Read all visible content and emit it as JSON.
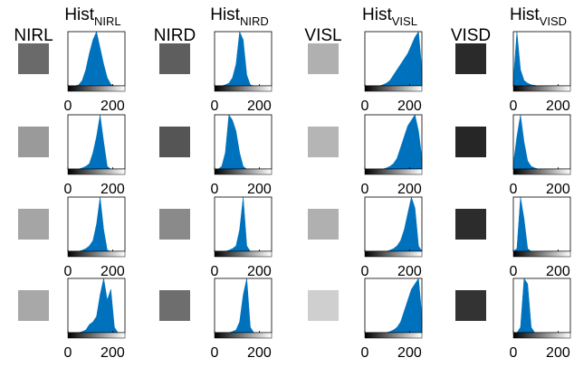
{
  "columns": [
    {
      "image_label": "NIRL",
      "hist_title": "Hist",
      "hist_subscript": "NIRL"
    },
    {
      "image_label": "NIRD",
      "hist_title": "Hist",
      "hist_subscript": "NIRD"
    },
    {
      "image_label": "VISL",
      "hist_title": "Hist",
      "hist_subscript": "VISL"
    },
    {
      "image_label": "VISD",
      "hist_title": "Hist",
      "hist_subscript": "VISD"
    }
  ],
  "chart_data": [
    {
      "type": "area",
      "x": [
        0,
        16,
        32,
        48,
        64,
        80,
        96,
        112,
        128,
        144,
        160,
        176,
        192,
        208,
        224,
        240,
        255
      ],
      "values": [
        0,
        0,
        0,
        0.02,
        0.1,
        0.3,
        0.6,
        0.85,
        1,
        0.7,
        0.4,
        0.15,
        0.03,
        0,
        0,
        0,
        0
      ],
      "xlim": [
        0,
        255
      ],
      "ylim": [
        0,
        1
      ],
      "xticks": [
        0,
        200
      ],
      "color": "#0072bd"
    },
    {
      "type": "area",
      "x": [
        0,
        16,
        32,
        48,
        64,
        80,
        96,
        112,
        128,
        144,
        160,
        176,
        192,
        208,
        224,
        240,
        255
      ],
      "values": [
        0,
        0,
        0,
        0.02,
        0.05,
        0.15,
        0.4,
        1,
        0.85,
        0.2,
        0.02,
        0,
        0,
        0,
        0,
        0,
        0
      ],
      "xlim": [
        0,
        255
      ],
      "ylim": [
        0,
        1
      ],
      "xticks": [
        0,
        200
      ],
      "color": "#0072bd"
    },
    {
      "type": "area",
      "x": [
        0,
        16,
        32,
        48,
        64,
        80,
        96,
        112,
        128,
        144,
        160,
        176,
        192,
        208,
        224,
        240,
        255
      ],
      "values": [
        0,
        0,
        0,
        0,
        0,
        0.02,
        0.05,
        0.1,
        0.2,
        0.3,
        0.4,
        0.5,
        0.6,
        0.75,
        0.9,
        1,
        0.3
      ],
      "xlim": [
        0,
        255
      ],
      "ylim": [
        0,
        1
      ],
      "xticks": [
        0,
        200
      ],
      "color": "#0072bd"
    },
    {
      "type": "area",
      "x": [
        0,
        16,
        32,
        48,
        64,
        80,
        96,
        112,
        128,
        144,
        160,
        176,
        192,
        208,
        224,
        240,
        255
      ],
      "values": [
        0.1,
        1,
        0.3,
        0.1,
        0.05,
        0.02,
        0.01,
        0,
        0,
        0,
        0,
        0,
        0,
        0,
        0,
        0,
        0
      ],
      "xlim": [
        0,
        255
      ],
      "ylim": [
        0,
        1
      ],
      "xticks": [
        0,
        200
      ],
      "color": "#0072bd"
    },
    {
      "type": "area",
      "x": [
        0,
        16,
        32,
        48,
        64,
        80,
        96,
        112,
        128,
        144,
        160,
        176,
        192,
        208,
        224,
        240,
        255
      ],
      "values": [
        0,
        0,
        0,
        0,
        0.02,
        0.05,
        0.1,
        0.3,
        0.6,
        1,
        0.5,
        0.05,
        0,
        0,
        0,
        0,
        0
      ],
      "xlim": [
        0,
        255
      ],
      "ylim": [
        0,
        1
      ],
      "xticks": [
        0,
        200
      ],
      "color": "#0072bd"
    },
    {
      "type": "area",
      "x": [
        0,
        16,
        32,
        48,
        64,
        80,
        96,
        112,
        128,
        144,
        160,
        176,
        192,
        208,
        224,
        240,
        255
      ],
      "values": [
        0,
        0,
        0.05,
        0.3,
        1,
        0.9,
        0.7,
        0.3,
        0.05,
        0,
        0,
        0,
        0,
        0,
        0,
        0,
        0
      ],
      "xlim": [
        0,
        255
      ],
      "ylim": [
        0,
        1
      ],
      "xticks": [
        0,
        200
      ],
      "color": "#0072bd"
    },
    {
      "type": "area",
      "x": [
        0,
        16,
        32,
        48,
        64,
        80,
        96,
        112,
        128,
        144,
        160,
        176,
        192,
        208,
        224,
        240,
        255
      ],
      "values": [
        0,
        0,
        0,
        0,
        0,
        0,
        0.02,
        0.05,
        0.1,
        0.2,
        0.4,
        0.6,
        0.8,
        0.9,
        1,
        0.7,
        0.2
      ],
      "xlim": [
        0,
        255
      ],
      "ylim": [
        0,
        1
      ],
      "xticks": [
        0,
        200
      ],
      "color": "#0072bd"
    },
    {
      "type": "area",
      "x": [
        0,
        16,
        32,
        48,
        64,
        80,
        96,
        112,
        128,
        144,
        160,
        176,
        192,
        208,
        224,
        240,
        255
      ],
      "values": [
        0.1,
        0.6,
        1,
        0.5,
        0.15,
        0.05,
        0.02,
        0,
        0,
        0,
        0,
        0,
        0,
        0,
        0,
        0,
        0
      ],
      "xlim": [
        0,
        255
      ],
      "ylim": [
        0,
        1
      ],
      "xticks": [
        0,
        200
      ],
      "color": "#0072bd"
    },
    {
      "type": "area",
      "x": [
        0,
        16,
        32,
        48,
        64,
        80,
        96,
        112,
        128,
        144,
        160,
        176,
        192,
        208,
        224,
        240,
        255
      ],
      "values": [
        0,
        0,
        0,
        0,
        0.02,
        0.05,
        0.1,
        0.2,
        0.5,
        1,
        0.4,
        0.02,
        0,
        0,
        0,
        0,
        0
      ],
      "xlim": [
        0,
        255
      ],
      "ylim": [
        0,
        1
      ],
      "xticks": [
        0,
        200
      ],
      "color": "#0072bd"
    },
    {
      "type": "area",
      "x": [
        0,
        16,
        32,
        48,
        64,
        80,
        96,
        112,
        128,
        144,
        160,
        176,
        192,
        208,
        224,
        240,
        255
      ],
      "values": [
        0,
        0,
        0,
        0,
        0.02,
        0.05,
        0.1,
        0.4,
        1,
        0.1,
        0,
        0,
        0,
        0,
        0,
        0,
        0
      ],
      "xlim": [
        0,
        255
      ],
      "ylim": [
        0,
        1
      ],
      "xticks": [
        0,
        200
      ],
      "color": "#0072bd"
    },
    {
      "type": "area",
      "x": [
        0,
        16,
        32,
        48,
        64,
        80,
        96,
        112,
        128,
        144,
        160,
        176,
        192,
        208,
        224,
        240,
        255
      ],
      "values": [
        0,
        0,
        0,
        0,
        0,
        0,
        0,
        0.02,
        0.05,
        0.1,
        0.2,
        0.4,
        0.7,
        1,
        0.8,
        0.1,
        0
      ],
      "xlim": [
        0,
        255
      ],
      "ylim": [
        0,
        1
      ],
      "xticks": [
        0,
        200
      ],
      "color": "#0072bd"
    },
    {
      "type": "area",
      "x": [
        0,
        16,
        32,
        48,
        64,
        80,
        96,
        112,
        128,
        144,
        160,
        176,
        192,
        208,
        224,
        240,
        255
      ],
      "values": [
        0,
        0.05,
        1,
        0.6,
        0.05,
        0,
        0,
        0,
        0,
        0,
        0,
        0,
        0,
        0,
        0,
        0,
        0
      ],
      "xlim": [
        0,
        255
      ],
      "ylim": [
        0,
        1
      ],
      "xticks": [
        0,
        200
      ],
      "color": "#0072bd"
    },
    {
      "type": "area",
      "x": [
        0,
        16,
        32,
        48,
        64,
        80,
        96,
        112,
        128,
        144,
        160,
        176,
        192,
        208,
        224,
        240,
        255
      ],
      "values": [
        0,
        0,
        0,
        0,
        0.02,
        0.05,
        0.15,
        0.2,
        0.3,
        0.7,
        1,
        0.6,
        0.8,
        0.1,
        0,
        0,
        0
      ],
      "xlim": [
        0,
        255
      ],
      "ylim": [
        0,
        1
      ],
      "xticks": [
        0,
        200
      ],
      "color": "#0072bd"
    },
    {
      "type": "area",
      "x": [
        0,
        16,
        32,
        48,
        64,
        80,
        96,
        112,
        128,
        144,
        160,
        176,
        192,
        208,
        224,
        240,
        255
      ],
      "values": [
        0,
        0,
        0,
        0,
        0,
        0.02,
        0.05,
        0.2,
        0.7,
        1,
        0.1,
        0,
        0,
        0,
        0,
        0,
        0
      ],
      "xlim": [
        0,
        255
      ],
      "ylim": [
        0,
        1
      ],
      "xticks": [
        0,
        200
      ],
      "color": "#0072bd"
    },
    {
      "type": "area",
      "x": [
        0,
        16,
        32,
        48,
        64,
        80,
        96,
        112,
        128,
        144,
        160,
        176,
        192,
        208,
        224,
        240,
        255
      ],
      "values": [
        0,
        0,
        0,
        0,
        0,
        0,
        0,
        0.02,
        0.05,
        0.1,
        0.2,
        0.4,
        0.6,
        0.8,
        0.9,
        1,
        0.3
      ],
      "xlim": [
        0,
        255
      ],
      "ylim": [
        0,
        1
      ],
      "xticks": [
        0,
        200
      ],
      "color": "#0072bd"
    },
    {
      "type": "area",
      "x": [
        0,
        16,
        32,
        48,
        64,
        80,
        96,
        112,
        128,
        144,
        160,
        176,
        192,
        208,
        224,
        240,
        255
      ],
      "values": [
        0,
        0,
        0.1,
        1,
        0.9,
        0.1,
        0,
        0,
        0,
        0,
        0,
        0,
        0,
        0,
        0,
        0,
        0
      ],
      "xlim": [
        0,
        255
      ],
      "ylim": [
        0,
        1
      ],
      "xticks": [
        0,
        200
      ],
      "color": "#0072bd"
    }
  ]
}
